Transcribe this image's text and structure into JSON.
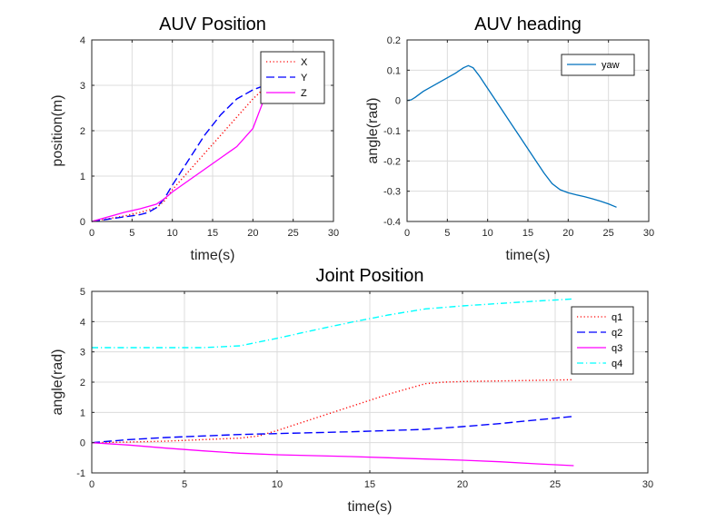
{
  "chart_data": [
    {
      "id": "auv-position",
      "type": "line",
      "title": "AUV Position",
      "xlabel": "time(s)",
      "ylabel": "position(m)",
      "xlim": [
        0,
        30
      ],
      "ylim": [
        0,
        4
      ],
      "xticks": [
        0,
        5,
        10,
        15,
        20,
        25,
        30
      ],
      "yticks": [
        0,
        1,
        2,
        3,
        4
      ],
      "grid": true,
      "legend": "top-right",
      "series": [
        {
          "name": "X",
          "color": "#ff0000",
          "style": "dotted",
          "x": [
            0,
            2,
            4,
            6,
            8,
            9,
            10,
            12,
            14,
            16,
            18,
            20,
            21.5
          ],
          "y": [
            0,
            0.06,
            0.12,
            0.2,
            0.3,
            0.45,
            0.7,
            1.1,
            1.5,
            1.9,
            2.3,
            2.7,
            2.95
          ]
        },
        {
          "name": "Y",
          "color": "#0000ff",
          "style": "dashed",
          "x": [
            0,
            2,
            4,
            6,
            7,
            8,
            9,
            10,
            12,
            14,
            16,
            18,
            20,
            21.5
          ],
          "y": [
            0,
            0.05,
            0.1,
            0.15,
            0.2,
            0.3,
            0.5,
            0.8,
            1.35,
            1.9,
            2.35,
            2.7,
            2.9,
            3.0
          ]
        },
        {
          "name": "Z",
          "color": "#ff00ff",
          "style": "solid",
          "x": [
            0,
            2,
            4,
            6,
            8,
            9,
            10,
            12,
            14,
            16,
            18,
            20,
            21.5
          ],
          "y": [
            0,
            0.1,
            0.2,
            0.28,
            0.38,
            0.5,
            0.65,
            0.9,
            1.15,
            1.4,
            1.65,
            2.05,
            2.75
          ]
        }
      ]
    },
    {
      "id": "auv-heading",
      "type": "line",
      "title": "AUV heading",
      "xlabel": "time(s)",
      "ylabel": "angle(rad)",
      "xlim": [
        0,
        30
      ],
      "ylim": [
        -0.4,
        0.2
      ],
      "xticks": [
        0,
        5,
        10,
        15,
        20,
        25,
        30
      ],
      "yticks": [
        -0.4,
        -0.3,
        -0.2,
        -0.1,
        0,
        0.1,
        0.2
      ],
      "grid": true,
      "legend": "top-right",
      "series": [
        {
          "name": "yaw",
          "color": "#0072bd",
          "style": "solid",
          "x": [
            0,
            0.5,
            1,
            2,
            3,
            4,
            5,
            6,
            7,
            7.6,
            8.2,
            9,
            10,
            11,
            12,
            13,
            14,
            15,
            16,
            17,
            18,
            19,
            20,
            21,
            22,
            23,
            24,
            25,
            26
          ],
          "y": [
            0,
            0.002,
            0.01,
            0.03,
            0.045,
            0.06,
            0.075,
            0.09,
            0.108,
            0.115,
            0.108,
            0.08,
            0.04,
            0.0,
            -0.04,
            -0.08,
            -0.12,
            -0.16,
            -0.2,
            -0.24,
            -0.275,
            -0.295,
            -0.305,
            -0.312,
            -0.318,
            -0.325,
            -0.333,
            -0.342,
            -0.353
          ]
        }
      ]
    },
    {
      "id": "joint-position",
      "type": "line",
      "title": "Joint Position",
      "xlabel": "time(s)",
      "ylabel": "angle(rad)",
      "xlim": [
        0,
        30
      ],
      "ylim": [
        -1,
        5
      ],
      "xticks": [
        0,
        5,
        10,
        15,
        20,
        25,
        30
      ],
      "yticks": [
        -1,
        0,
        1,
        2,
        3,
        4,
        5
      ],
      "grid": true,
      "legend": "top-right",
      "series": [
        {
          "name": "q1",
          "color": "#ff0000",
          "style": "dotted",
          "x": [
            0,
            2,
            4,
            6,
            8,
            9,
            10,
            12,
            14,
            16,
            18,
            19,
            20,
            22,
            24,
            26
          ],
          "y": [
            0,
            0.02,
            0.05,
            0.1,
            0.15,
            0.22,
            0.4,
            0.8,
            1.2,
            1.6,
            1.95,
            2.0,
            2.02,
            2.04,
            2.06,
            2.08
          ]
        },
        {
          "name": "q2",
          "color": "#0000ff",
          "style": "dashed",
          "x": [
            0,
            2,
            4,
            6,
            8,
            10,
            12,
            14,
            16,
            18,
            20,
            22,
            24,
            26
          ],
          "y": [
            0,
            0.1,
            0.17,
            0.22,
            0.27,
            0.3,
            0.33,
            0.36,
            0.4,
            0.44,
            0.53,
            0.63,
            0.75,
            0.87
          ]
        },
        {
          "name": "q3",
          "color": "#ff00ff",
          "style": "solid",
          "x": [
            0,
            2,
            4,
            6,
            8,
            10,
            12,
            14,
            16,
            18,
            20,
            22,
            24,
            26
          ],
          "y": [
            0,
            -0.08,
            -0.18,
            -0.27,
            -0.35,
            -0.4,
            -0.43,
            -0.46,
            -0.5,
            -0.54,
            -0.58,
            -0.63,
            -0.7,
            -0.76
          ]
        },
        {
          "name": "q4",
          "color": "#00ffff",
          "style": "dashdot",
          "x": [
            0,
            2,
            4,
            6,
            8,
            10,
            12,
            14,
            16,
            18,
            20,
            22,
            24,
            26
          ],
          "y": [
            3.14,
            3.14,
            3.14,
            3.14,
            3.2,
            3.45,
            3.72,
            3.98,
            4.22,
            4.42,
            4.52,
            4.6,
            4.68,
            4.75
          ]
        }
      ]
    }
  ]
}
